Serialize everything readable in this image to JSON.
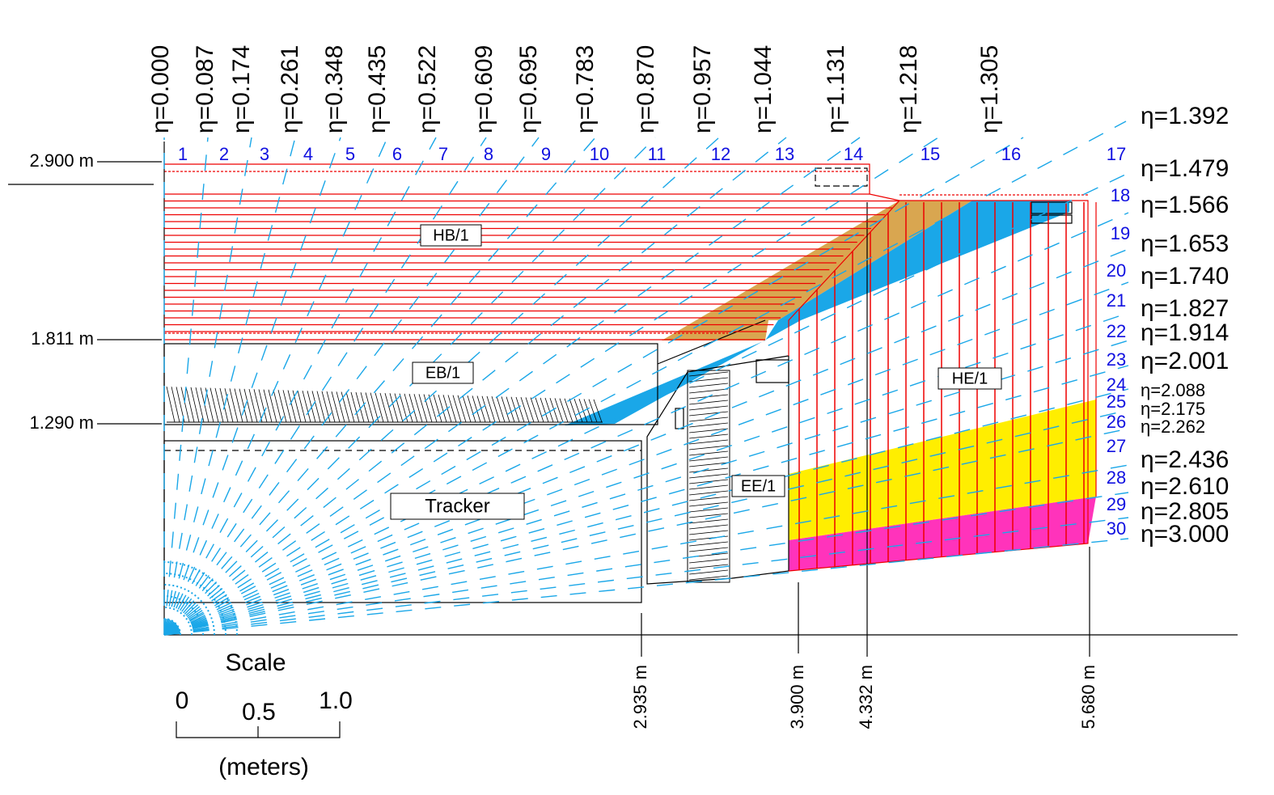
{
  "top_eta_labels": [
    "η=0.000",
    "η=0.087",
    "η=0.174",
    "η=0.261",
    "η=0.348",
    "η=0.435",
    "η=0.522",
    "η=0.609",
    "η=0.695",
    "η=0.783",
    "η=0.870",
    "η=0.957",
    "η=1.044",
    "η=1.131",
    "η=1.218",
    "η=1.305"
  ],
  "right_eta_labels": [
    "η=1.392",
    "η=1.479",
    "η=1.566",
    "η=1.653",
    "η=1.740",
    "η=1.827",
    "η=1.914",
    "η=2.001",
    "η=2.088",
    "η=2.175",
    "η=2.262",
    "η=2.436",
    "η=2.610",
    "η=2.805",
    "η=3.000"
  ],
  "tower_numbers": [
    "1",
    "2",
    "3",
    "4",
    "5",
    "6",
    "7",
    "8",
    "9",
    "10",
    "11",
    "12",
    "13",
    "14",
    "15",
    "16",
    "17",
    "18",
    "19",
    "20",
    "21",
    "22",
    "23",
    "24",
    "25",
    "26",
    "27",
    "28",
    "29",
    "30"
  ],
  "radius_labels": [
    "2.900 m",
    "1.811 m",
    "1.290 m"
  ],
  "z_labels": [
    "2.935 m",
    "3.900 m",
    "4.332 m",
    "5.680 m"
  ],
  "region_labels": [
    "HB/1",
    "EB/1",
    "Tracker",
    "EE/1",
    "HE/1"
  ],
  "scale": {
    "title": "Scale",
    "ticks": [
      "0",
      "0.5",
      "1.0"
    ],
    "unit": "(meters)"
  }
}
